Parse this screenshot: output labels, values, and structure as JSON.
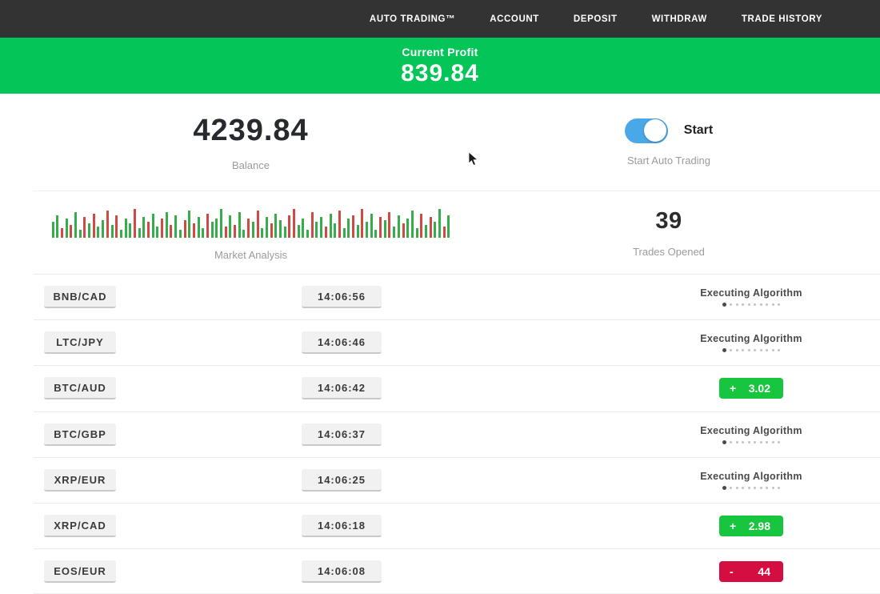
{
  "nav": {
    "items": [
      {
        "label": "AUTO TRADING™"
      },
      {
        "label": "ACCOUNT"
      },
      {
        "label": "DEPOSIT"
      },
      {
        "label": "WITHDRAW"
      },
      {
        "label": "TRADE HISTORY"
      }
    ]
  },
  "profit_banner": {
    "label": "Current Profit",
    "value": "839.84"
  },
  "stats": {
    "balance": {
      "value": "4239.84",
      "label": "Balance"
    },
    "auto_trading": {
      "toggle_label": "Start",
      "label": "Start Auto Trading",
      "toggle_on": true
    },
    "market_analysis": {
      "label": "Market Analysis"
    },
    "trades_opened": {
      "value": "39",
      "label": "Trades Opened"
    }
  },
  "chart_data": {
    "type": "bar",
    "title": "Market Analysis",
    "description": "decorative green/red volume-style bars, baseline-aligned",
    "bar_colors": {
      "g": "#36ad4a",
      "r": "#cf4a43"
    },
    "heights": [
      20,
      28,
      12,
      24,
      16,
      32,
      10,
      26,
      18,
      30,
      14,
      22,
      34,
      16,
      28,
      10,
      24,
      18,
      36,
      12,
      26,
      20,
      30,
      14,
      24,
      32,
      16,
      28,
      10,
      22,
      34,
      18,
      26,
      12,
      30,
      20,
      24,
      36,
      14,
      28,
      16,
      32,
      10,
      24,
      20,
      34,
      12,
      26,
      18,
      30,
      22,
      14,
      28,
      36,
      16,
      24,
      10,
      32,
      20,
      26,
      14,
      30,
      18,
      34,
      12,
      24,
      28,
      16,
      36,
      20,
      30,
      10,
      26,
      22,
      32,
      14,
      28,
      18,
      24,
      34,
      12,
      30,
      16,
      26,
      20,
      36,
      14,
      28
    ],
    "colors": "ggrgrggrgrggrgrgggrggrggrgrggrgrggrgggrgrggrgrggrgggrrgggrggrggrggrgrgggrgrggrgggrgrggrg"
  },
  "trades": {
    "executing_label": "Executing Algorithm",
    "rows": [
      {
        "pair": "BNB/CAD",
        "time": "14:06:56",
        "status": "executing",
        "sign": "",
        "amount": ""
      },
      {
        "pair": "LTC/JPY",
        "time": "14:06:46",
        "status": "executing",
        "sign": "",
        "amount": ""
      },
      {
        "pair": "BTC/AUD",
        "time": "14:06:42",
        "status": "profit",
        "sign": "+",
        "amount": "3.02"
      },
      {
        "pair": "BTC/GBP",
        "time": "14:06:37",
        "status": "executing",
        "sign": "",
        "amount": ""
      },
      {
        "pair": "XRP/EUR",
        "time": "14:06:25",
        "status": "executing",
        "sign": "",
        "amount": ""
      },
      {
        "pair": "XRP/CAD",
        "time": "14:06:18",
        "status": "profit",
        "sign": "+",
        "amount": "2.98"
      },
      {
        "pair": "EOS/EUR",
        "time": "14:06:08",
        "status": "loss",
        "sign": "-",
        "amount": "44"
      }
    ]
  },
  "colors": {
    "nav_bg": "#333333",
    "banner_green": "#04c558",
    "badge_green": "#17c53e",
    "badge_red": "#d40e41",
    "toggle_blue": "#4aa8e8"
  }
}
